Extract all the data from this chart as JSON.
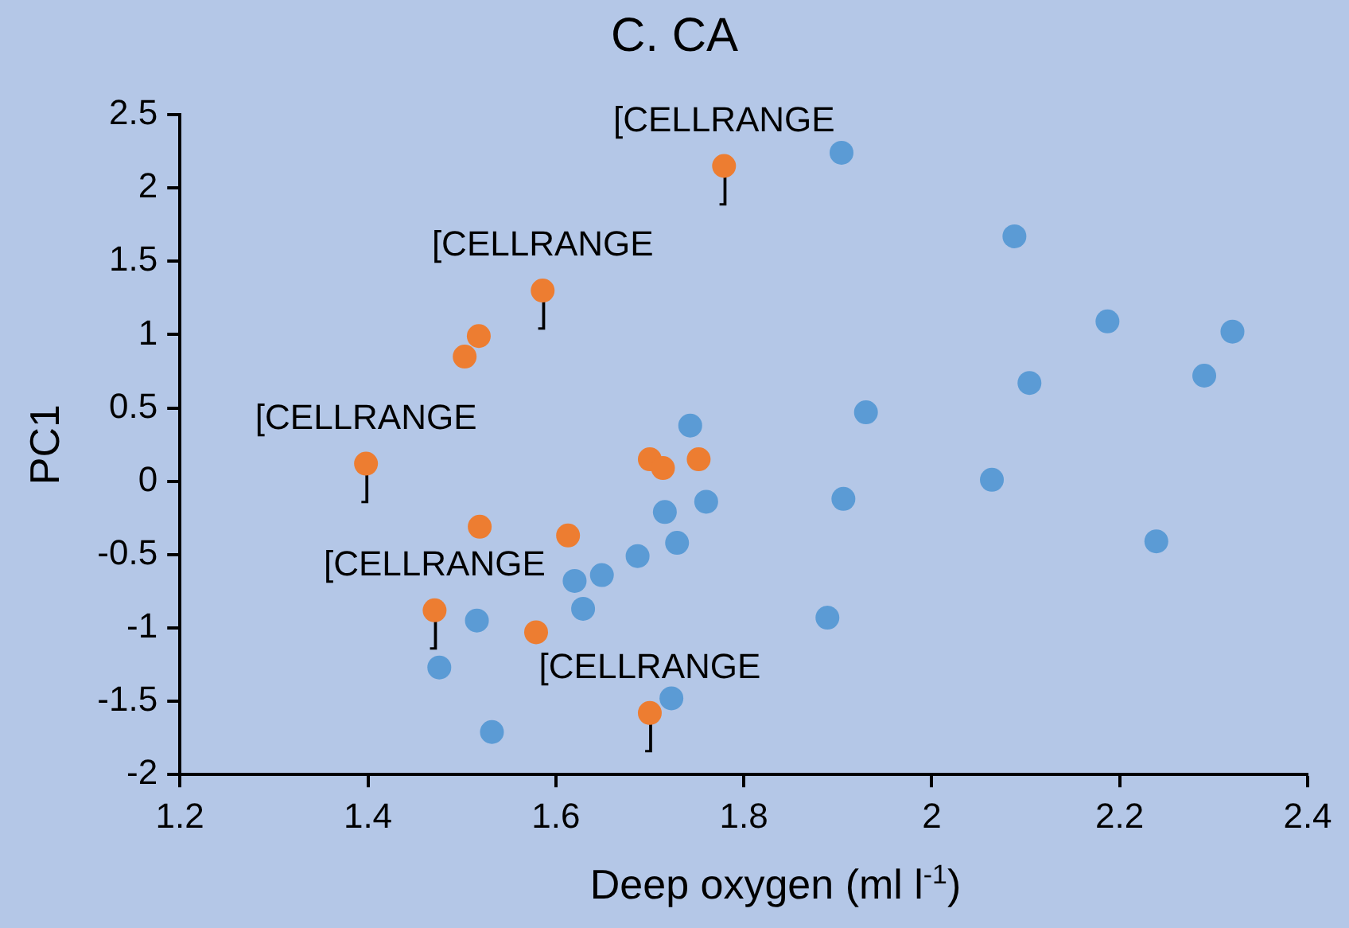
{
  "chart_data": {
    "type": "scatter",
    "title": "C. CA",
    "xlabel": "Deep oxygen (ml l$^{-1}$)",
    "ylabel": "PC1",
    "xlim": [
      1.2,
      2.4
    ],
    "xticks": [
      1.2,
      1.4,
      1.6,
      1.8,
      2,
      2.2,
      2.4
    ],
    "ylim": [
      -2,
      2.5
    ],
    "yticks": [
      -2,
      -1.5,
      -1,
      -0.5,
      0,
      0.5,
      1,
      1.5,
      2,
      2.5
    ],
    "grid": false,
    "legend": false,
    "marker": "circle",
    "series": [
      {
        "color": "#5b9bd5",
        "x": [
          1.904,
          2.088,
          2.187,
          2.32,
          2.104,
          2.29,
          1.93,
          1.743,
          2.064,
          1.906,
          1.76,
          1.716,
          2.239,
          1.729,
          1.687,
          1.649,
          1.62,
          1.629,
          1.889,
          1.516,
          1.476,
          1.723,
          1.532
        ],
        "values": [
          2.24,
          1.67,
          1.09,
          1.02,
          0.67,
          0.72,
          0.47,
          0.38,
          0.01,
          -0.12,
          -0.14,
          -0.21,
          -0.41,
          -0.42,
          -0.51,
          -0.64,
          -0.68,
          -0.87,
          -0.93,
          -0.95,
          -1.27,
          -1.48,
          -1.71
        ]
      },
      {
        "color": "#ed7d31",
        "x": [
          1.779,
          1.586,
          1.518,
          1.503,
          1.398,
          1.7,
          1.714,
          1.752,
          1.519,
          1.613,
          1.471,
          1.579,
          1.7
        ],
        "values": [
          2.15,
          1.3,
          0.99,
          0.85,
          0.12,
          0.15,
          0.09,
          0.15,
          -0.31,
          -0.37,
          -0.88,
          -1.03,
          -1.58
        ],
        "value_labels": [
          "[CELLRANGE\n]",
          "[CELLRANGE\n]",
          null,
          null,
          "[CELLRANGE\n]",
          null,
          null,
          null,
          null,
          null,
          "[CELLRANGE\n]",
          null,
          "[CELLRANGE\n]"
        ]
      }
    ]
  }
}
